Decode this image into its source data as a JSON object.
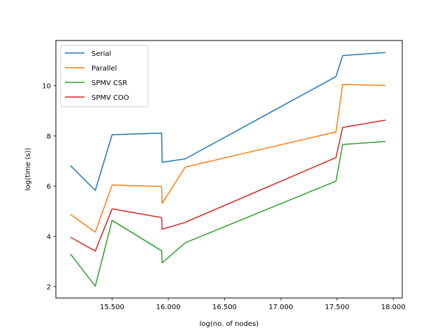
{
  "chart_data": {
    "type": "line",
    "title": "",
    "xlabel": "log(no. of nodes)",
    "ylabel": "log(time (s))",
    "xlim": [
      15.0,
      18.08
    ],
    "ylim": [
      1.55,
      11.8
    ],
    "xticks": [
      {
        "value": 15.5,
        "label": "15.500"
      },
      {
        "value": 16.0,
        "label": "16.000"
      },
      {
        "value": 16.5,
        "label": "16.500"
      },
      {
        "value": 17.0,
        "label": "17.000"
      },
      {
        "value": 17.5,
        "label": "17.500"
      },
      {
        "value": 18.0,
        "label": "18.000"
      }
    ],
    "yticks": [
      {
        "value": 2,
        "label": "2"
      },
      {
        "value": 4,
        "label": "4"
      },
      {
        "value": 6,
        "label": "6"
      },
      {
        "value": 8,
        "label": "8"
      },
      {
        "value": 10,
        "label": "10"
      }
    ],
    "x": [
      15.13,
      15.35,
      15.5,
      15.94,
      15.945,
      16.15,
      17.49,
      17.55,
      17.93
    ],
    "series": [
      {
        "name": "Serial",
        "color": "#1f77b4",
        "values": [
          6.82,
          5.83,
          8.05,
          8.11,
          6.95,
          7.09,
          10.36,
          11.2,
          11.32
        ]
      },
      {
        "name": "Parallel",
        "color": "#ff7f0e",
        "values": [
          4.88,
          4.17,
          6.05,
          5.99,
          5.32,
          6.76,
          8.16,
          10.05,
          10.01
        ]
      },
      {
        "name": "SPMV CSR",
        "color": "#2ca02c",
        "values": [
          3.3,
          2.02,
          4.64,
          3.43,
          2.95,
          3.75,
          6.2,
          7.66,
          7.78
        ]
      },
      {
        "name": "SPMV COO",
        "color": "#d62728",
        "values": [
          3.97,
          3.42,
          5.1,
          4.75,
          4.29,
          4.56,
          7.14,
          8.34,
          8.63
        ]
      }
    ],
    "legend": {
      "placement": "upper-left"
    },
    "grid": false
  }
}
